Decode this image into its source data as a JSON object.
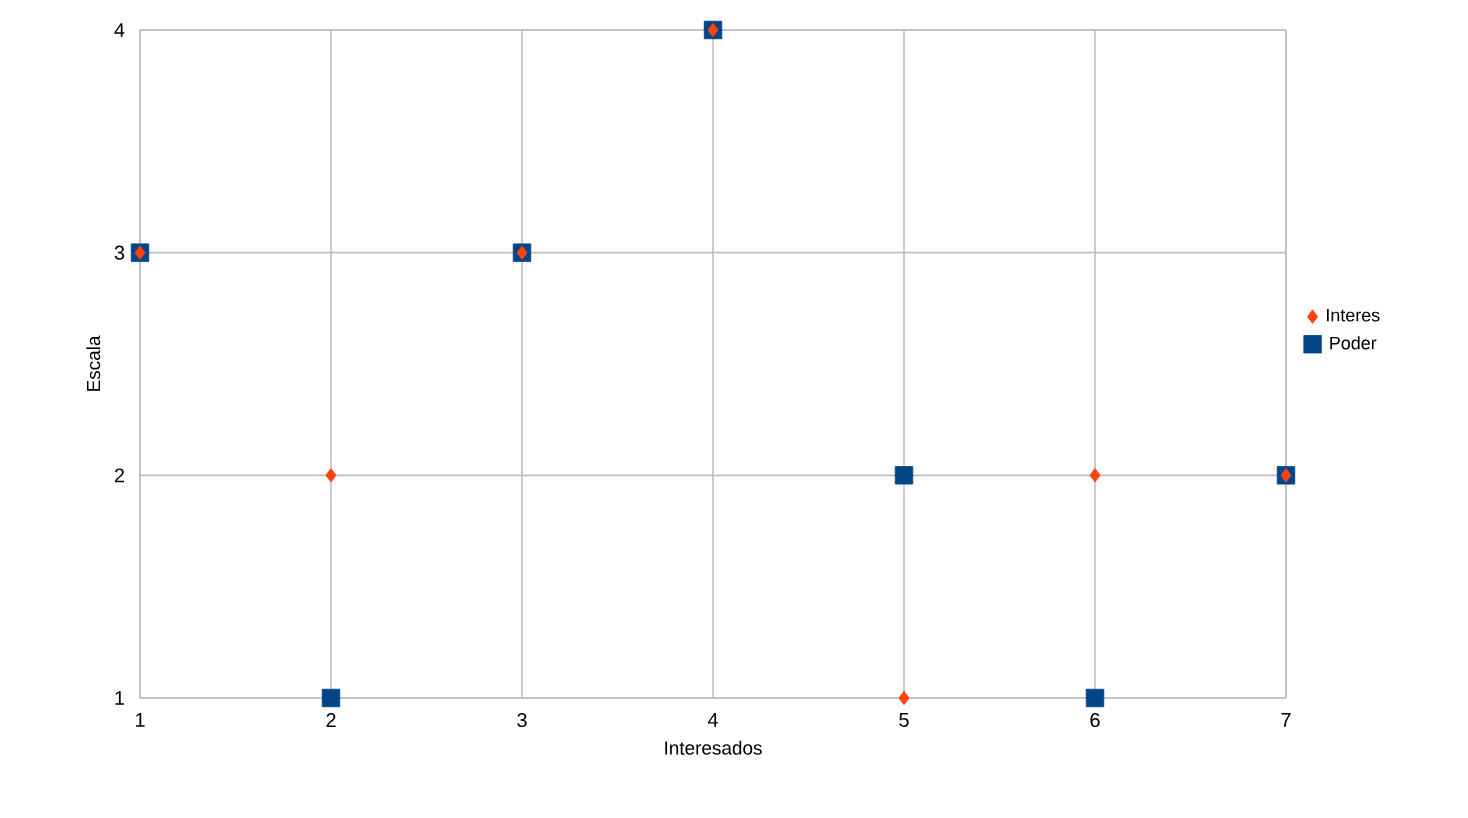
{
  "chart_data": {
    "type": "scatter",
    "xlabel": "Interesados",
    "ylabel": "Escala",
    "x": [
      1,
      2,
      3,
      4,
      5,
      6,
      7
    ],
    "series": [
      {
        "name": "Interes",
        "color": "#ff420e",
        "marker": "diamond",
        "values": [
          3,
          2,
          3,
          4,
          1,
          2,
          2
        ]
      },
      {
        "name": "Poder",
        "color": "#004586",
        "marker": "square",
        "values": [
          3,
          1,
          3,
          4,
          2,
          1,
          2
        ]
      }
    ],
    "xlim": [
      1,
      7
    ],
    "xticks": [
      1,
      2,
      3,
      4,
      5,
      6,
      7
    ],
    "ylim": [
      1,
      4
    ],
    "yticks": [
      1,
      2,
      3,
      4
    ],
    "grid": true,
    "legend": "right"
  }
}
